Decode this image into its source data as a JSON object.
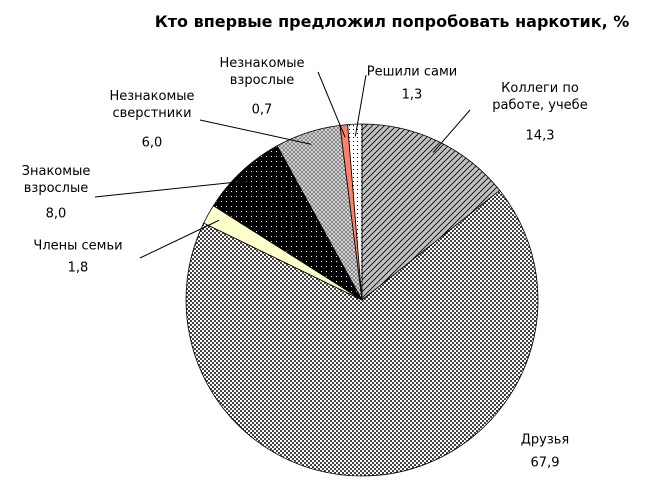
{
  "chart_data": {
    "type": "pie",
    "title": "Кто впервые предложил попробовать наркотик, %",
    "categories": [
      "Коллеги по работе, учебе",
      "Друзья",
      "Члены семьи",
      "Знакомые взрослые",
      "Незнакомые сверстники",
      "Незнакомые взрослые",
      "Решили сами"
    ],
    "values": [
      14.3,
      67.9,
      1.8,
      8.0,
      6.0,
      0.7,
      1.3
    ],
    "value_labels": [
      "14,3",
      "67,9",
      "1,8",
      "8,0",
      "6,0",
      "0,7",
      "1,3"
    ],
    "colors": [
      "#c0c0c0",
      "#404040",
      "#ffffcc",
      "#000000",
      "#808080",
      "#ff8066",
      "#ffffff"
    ]
  }
}
